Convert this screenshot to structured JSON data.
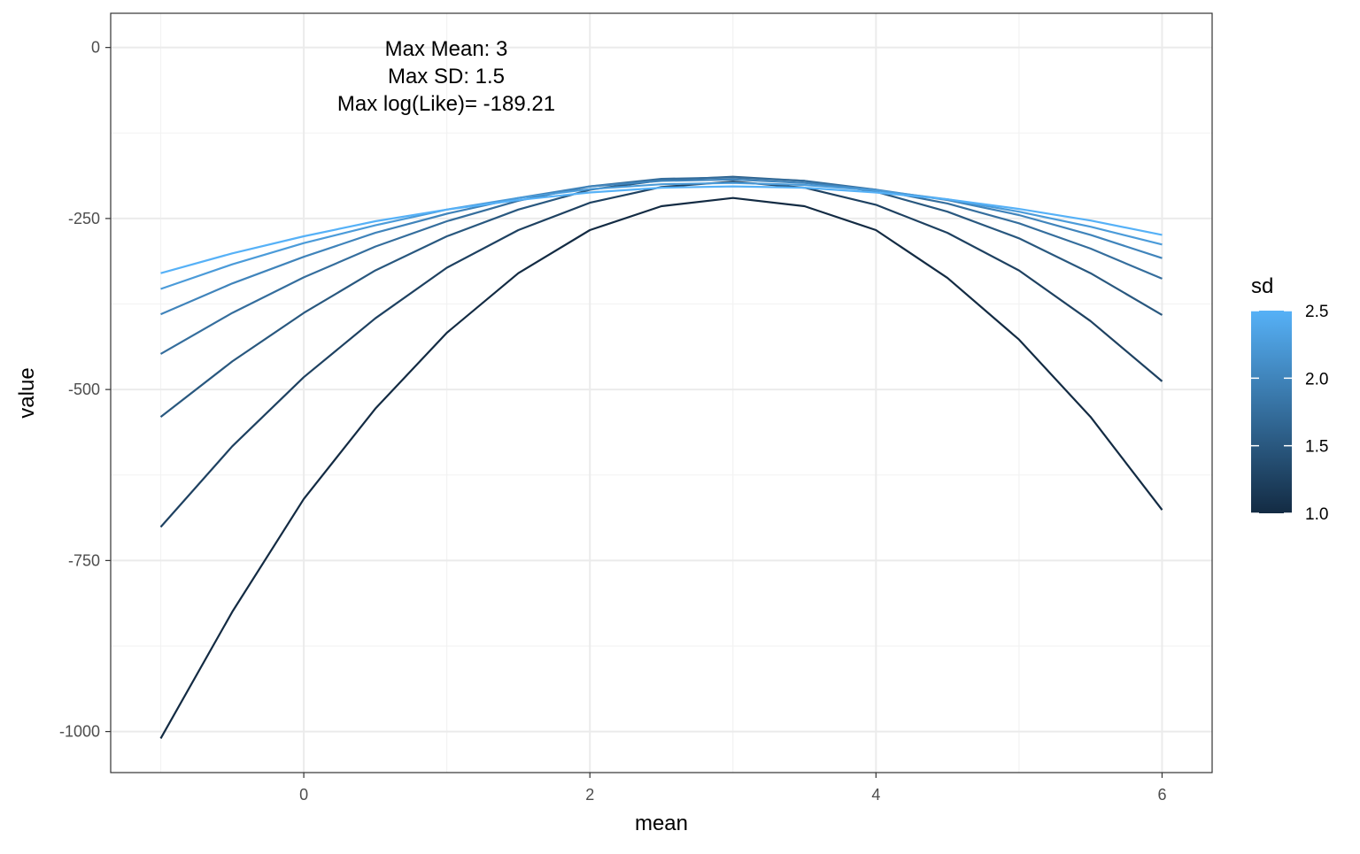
{
  "chart_data": {
    "type": "line",
    "xlabel": "mean",
    "ylabel": "value",
    "xlim": [
      -1.35,
      6.35
    ],
    "ylim": [
      -1060,
      50
    ],
    "x_ticks": [
      0,
      2,
      4,
      6
    ],
    "x_tick_labels": [
      "0",
      "2",
      "4",
      "6"
    ],
    "y_ticks": [
      0,
      -250,
      -500,
      -750,
      -1000
    ],
    "y_tick_labels": [
      "0",
      "-250",
      "-500",
      "-750",
      "-1000"
    ],
    "grid": true,
    "annotation": [
      "Max Mean:  3",
      "Max SD:  1.5",
      "Max log(Like)=  -189.21"
    ],
    "annotation_anchor": {
      "x": 1.5,
      "y": 0
    },
    "legend": {
      "title": "sd",
      "placement": "right",
      "type": "colorbar",
      "range": [
        1.0,
        2.5
      ],
      "breaks": [
        1.0,
        1.5,
        2.0,
        2.5
      ],
      "break_labels": [
        "1.0",
        "1.5",
        "2.0",
        "2.5"
      ],
      "low_color": "#132B43",
      "high_color": "#56B1F7"
    },
    "x": [
      -1,
      -0.5,
      0,
      0.5,
      1,
      1.5,
      2,
      2.5,
      3,
      3.5,
      4,
      4.5,
      5,
      5.5,
      6
    ],
    "series": [
      {
        "sd": 1.0,
        "values": [
          -1010,
          -825,
          -660,
          -528,
          -417,
          -330,
          -267,
          -232,
          -220,
          -232,
          -267,
          -337,
          -427,
          -540,
          -676
        ]
      },
      {
        "sd": 1.25,
        "values": [
          -701,
          -583,
          -482,
          -396,
          -322,
          -267,
          -227,
          -204,
          -196,
          -205,
          -230,
          -271,
          -326,
          -400,
          -488
        ]
      },
      {
        "sd": 1.5,
        "values": [
          -540,
          -459,
          -388,
          -326,
          -276,
          -237,
          -208,
          -194,
          -189,
          -195,
          -211,
          -240,
          -279,
          -330,
          -391
        ]
      },
      {
        "sd": 1.75,
        "values": [
          -448,
          -388,
          -336,
          -291,
          -254,
          -224,
          -203,
          -192,
          -190,
          -195,
          -208,
          -228,
          -257,
          -294,
          -338
        ]
      },
      {
        "sd": 2.0,
        "values": [
          -390,
          -345,
          -306,
          -271,
          -243,
          -220,
          -203,
          -195,
          -193,
          -198,
          -208,
          -223,
          -245,
          -274,
          -308
        ]
      },
      {
        "sd": 2.25,
        "values": [
          -353,
          -317,
          -286,
          -260,
          -237,
          -220,
          -207,
          -200,
          -198,
          -201,
          -209,
          -222,
          -240,
          -262,
          -288
        ]
      },
      {
        "sd": 2.5,
        "values": [
          -330,
          -301,
          -276,
          -254,
          -237,
          -223,
          -212,
          -205,
          -203,
          -205,
          -212,
          -222,
          -236,
          -253,
          -274
        ]
      }
    ]
  }
}
